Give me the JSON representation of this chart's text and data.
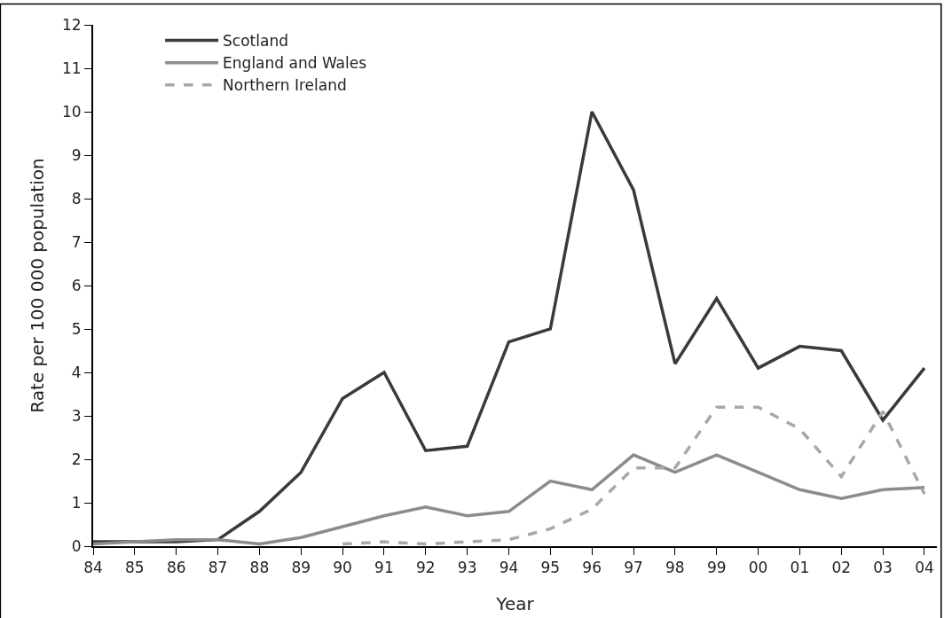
{
  "chart_data": {
    "type": "line",
    "xlabel": "Year",
    "ylabel": "Rate per 100 000 population",
    "categories": [
      "84",
      "85",
      "86",
      "87",
      "88",
      "89",
      "90",
      "91",
      "92",
      "93",
      "94",
      "95",
      "96",
      "97",
      "98",
      "99",
      "00",
      "01",
      "02",
      "03",
      "04"
    ],
    "ylim": [
      0,
      12
    ],
    "yticks": [
      0,
      1,
      2,
      3,
      4,
      5,
      6,
      7,
      8,
      9,
      10,
      11,
      12
    ],
    "legend": "top left",
    "marker": "none",
    "series": [
      {
        "name": "Scotland",
        "color": "#3a3a3a",
        "line_style": "solid",
        "values": [
          0.1,
          0.1,
          0.1,
          0.15,
          0.8,
          1.7,
          3.4,
          4.0,
          2.2,
          2.3,
          4.7,
          5.0,
          10.0,
          8.2,
          4.2,
          5.7,
          4.1,
          4.6,
          4.5,
          2.9,
          4.1
        ]
      },
      {
        "name": "England and Wales",
        "color": "#8c8c8c",
        "line_style": "solid",
        "values": [
          0.05,
          0.1,
          0.15,
          0.15,
          0.05,
          0.2,
          0.45,
          0.7,
          0.9,
          0.7,
          0.8,
          1.5,
          1.3,
          2.1,
          1.7,
          2.1,
          1.7,
          1.3,
          1.1,
          1.3,
          1.35
        ]
      },
      {
        "name": "Northern Ireland",
        "color": "#a8a8a8",
        "line_style": "dashed",
        "values": [
          null,
          null,
          null,
          null,
          null,
          null,
          0.05,
          0.1,
          0.05,
          0.1,
          0.15,
          0.4,
          0.85,
          1.8,
          1.8,
          3.2,
          3.2,
          2.7,
          1.6,
          3.1,
          1.2
        ]
      }
    ]
  }
}
